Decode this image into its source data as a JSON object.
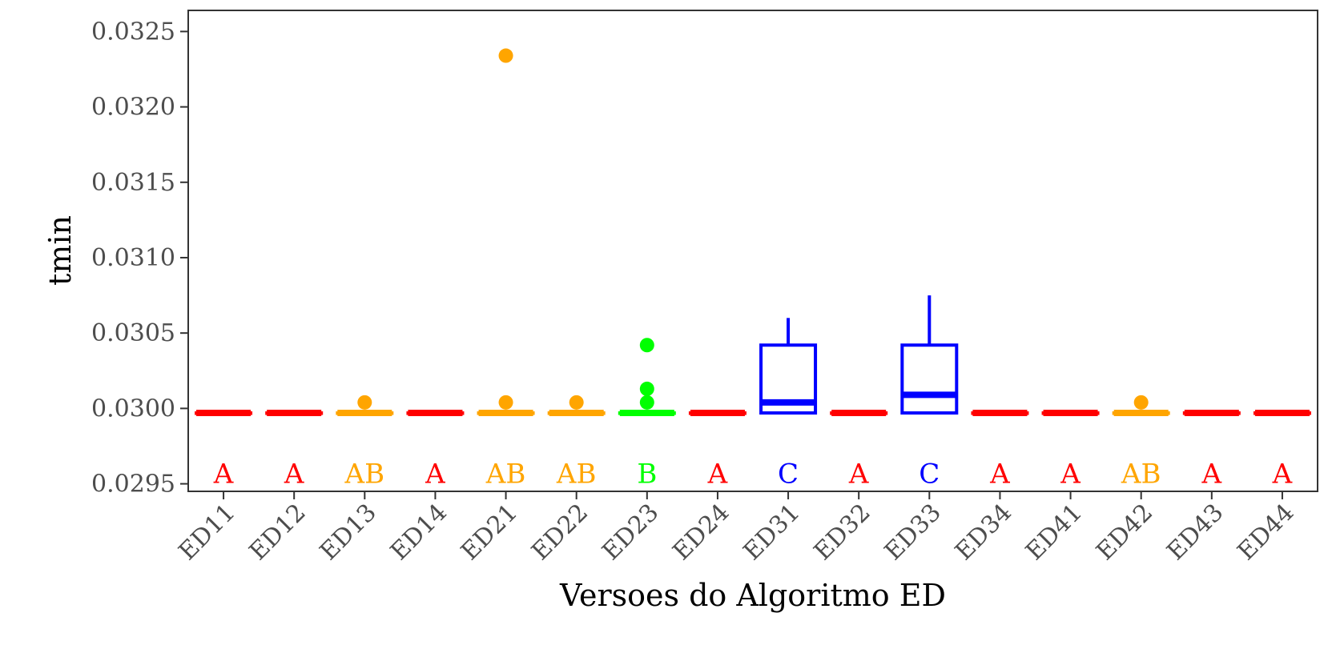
{
  "chart_data": {
    "type": "boxplot",
    "title": "",
    "xlabel": "Versoes do Algoritmo ED",
    "ylabel": "tmin",
    "ylim": [
      0.02945,
      0.03264
    ],
    "yticks": [
      "0.0295",
      "0.0300",
      "0.0305",
      "0.0310",
      "0.0315",
      "0.0320",
      "0.0325"
    ],
    "ytick_values": [
      0.0295,
      0.03,
      0.0305,
      0.031,
      0.0315,
      0.032,
      0.0325
    ],
    "grid": false,
    "legend": "none",
    "categories": [
      "ED11",
      "ED12",
      "ED13",
      "ED14",
      "ED21",
      "ED22",
      "ED23",
      "ED24",
      "ED31",
      "ED32",
      "ED33",
      "ED34",
      "ED41",
      "ED42",
      "ED43",
      "ED44"
    ],
    "letters": [
      "A",
      "A",
      "AB",
      "A",
      "AB",
      "AB",
      "B",
      "A",
      "C",
      "A",
      "C",
      "A",
      "A",
      "AB",
      "A",
      "A"
    ],
    "letter_y": 0.02957,
    "group_colors": {
      "A": "#ff0000",
      "AB": "#ffa500",
      "B": "#00ff00",
      "C": "#0000ff"
    },
    "boxes": [
      {
        "min": 0.02997,
        "q1": 0.02997,
        "median": 0.02997,
        "q3": 0.02997,
        "max": 0.02997,
        "outliers": []
      },
      {
        "min": 0.02997,
        "q1": 0.02997,
        "median": 0.02997,
        "q3": 0.02997,
        "max": 0.02997,
        "outliers": []
      },
      {
        "min": 0.02997,
        "q1": 0.02997,
        "median": 0.02997,
        "q3": 0.02997,
        "max": 0.02997,
        "outliers": [
          0.03004
        ]
      },
      {
        "min": 0.02997,
        "q1": 0.02997,
        "median": 0.02997,
        "q3": 0.02997,
        "max": 0.02997,
        "outliers": []
      },
      {
        "min": 0.02997,
        "q1": 0.02997,
        "median": 0.02997,
        "q3": 0.02997,
        "max": 0.02997,
        "outliers": [
          0.03004,
          0.03234
        ]
      },
      {
        "min": 0.02997,
        "q1": 0.02997,
        "median": 0.02997,
        "q3": 0.02997,
        "max": 0.02997,
        "outliers": [
          0.03004
        ]
      },
      {
        "min": 0.02997,
        "q1": 0.02997,
        "median": 0.02997,
        "q3": 0.02997,
        "max": 0.02997,
        "outliers": [
          0.03004,
          0.03013,
          0.03042
        ]
      },
      {
        "min": 0.02997,
        "q1": 0.02997,
        "median": 0.02997,
        "q3": 0.02997,
        "max": 0.02997,
        "outliers": []
      },
      {
        "min": 0.02997,
        "q1": 0.02997,
        "median": 0.03004,
        "q3": 0.03042,
        "max": 0.0306,
        "outliers": []
      },
      {
        "min": 0.02997,
        "q1": 0.02997,
        "median": 0.02997,
        "q3": 0.02997,
        "max": 0.02997,
        "outliers": []
      },
      {
        "min": 0.02997,
        "q1": 0.02997,
        "median": 0.03009,
        "q3": 0.03042,
        "max": 0.03075,
        "outliers": []
      },
      {
        "min": 0.02997,
        "q1": 0.02997,
        "median": 0.02997,
        "q3": 0.02997,
        "max": 0.02997,
        "outliers": []
      },
      {
        "min": 0.02997,
        "q1": 0.02997,
        "median": 0.02997,
        "q3": 0.02997,
        "max": 0.02997,
        "outliers": []
      },
      {
        "min": 0.02997,
        "q1": 0.02997,
        "median": 0.02997,
        "q3": 0.02997,
        "max": 0.02997,
        "outliers": [
          0.03004
        ]
      },
      {
        "min": 0.02997,
        "q1": 0.02997,
        "median": 0.02997,
        "q3": 0.02997,
        "max": 0.02997,
        "outliers": []
      },
      {
        "min": 0.02997,
        "q1": 0.02997,
        "median": 0.02997,
        "q3": 0.02997,
        "max": 0.02997,
        "outliers": []
      }
    ]
  }
}
